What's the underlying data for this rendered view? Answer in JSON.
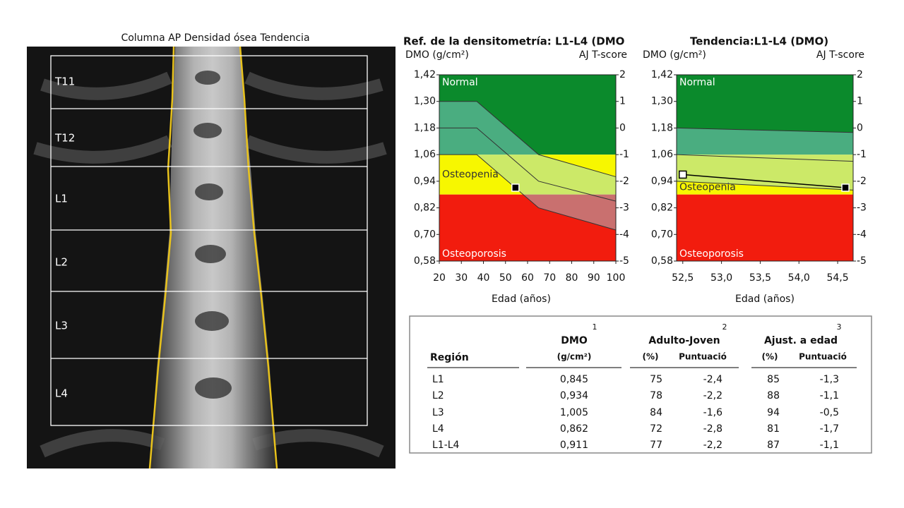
{
  "image": {
    "title": "Columna AP Densidad ósea Tendencia",
    "vertebrae": [
      "T11",
      "T12",
      "L1",
      "L2",
      "L3",
      "L4"
    ]
  },
  "charts": [
    {
      "type": "line",
      "title": "Ref. de la densitometría: L1-L4 (DMO",
      "y_label": "DMO (g/cm²)",
      "y2_label": "AJ T-score",
      "x_label": "Edad (años)",
      "xlim": [
        20,
        100
      ],
      "xticks": [
        20,
        30,
        40,
        50,
        60,
        70,
        80,
        90,
        100
      ],
      "ylim": [
        0.58,
        1.42
      ],
      "yticks": [
        {
          "value": 1.42,
          "label": "1,42"
        },
        {
          "value": 1.3,
          "label": "1,30"
        },
        {
          "value": 1.18,
          "label": "1,18"
        },
        {
          "value": 1.06,
          "label": "1,06"
        },
        {
          "value": 0.94,
          "label": "0,94"
        },
        {
          "value": 0.82,
          "label": "0,82"
        },
        {
          "value": 0.7,
          "label": "0,70"
        },
        {
          "value": 0.58,
          "label": "0,58"
        }
      ],
      "y2lim": [
        -5,
        2
      ],
      "y2ticks": [
        2,
        1,
        0,
        -1,
        -2,
        -3,
        -4,
        -5
      ],
      "zones": [
        {
          "label": "Normal",
          "from": 1.06,
          "to": 1.42,
          "color": "#0b8a2c"
        },
        {
          "label": "Osteopenia",
          "from": 0.88,
          "to": 1.06,
          "color": "#f7f700"
        },
        {
          "label": "Osteoporosis",
          "from": 0.58,
          "to": 0.88,
          "color": "#f21c0e"
        }
      ],
      "reference": {
        "x": [
          20,
          37,
          65,
          100
        ],
        "upper": [
          1.3,
          1.3,
          1.06,
          0.96
        ],
        "middle": [
          1.18,
          1.18,
          0.94,
          0.85
        ],
        "lower": [
          1.06,
          1.06,
          0.82,
          0.72
        ]
      },
      "series": [
        {
          "x": [
            54.5
          ],
          "values": [
            0.911
          ],
          "color": "#000000"
        }
      ]
    },
    {
      "type": "line",
      "title": "Tendencia:L1-L4 (DMO)",
      "y_label": "DMO (g/cm²)",
      "y2_label": "AJ T-score",
      "x_label": "Edad (años)",
      "xlim": [
        52.42,
        54.7
      ],
      "xticks": [
        {
          "value": 52.5,
          "label": "52,5"
        },
        {
          "value": 53.0,
          "label": "53,0"
        },
        {
          "value": 53.5,
          "label": "53,5"
        },
        {
          "value": 54.0,
          "label": "54,0"
        },
        {
          "value": 54.5,
          "label": "54,5"
        }
      ],
      "ylim": [
        0.58,
        1.42
      ],
      "yticks": [
        {
          "value": 1.42,
          "label": "1,42"
        },
        {
          "value": 1.3,
          "label": "1,30"
        },
        {
          "value": 1.18,
          "label": "1,18"
        },
        {
          "value": 1.06,
          "label": "1,06"
        },
        {
          "value": 0.94,
          "label": "0,94"
        },
        {
          "value": 0.82,
          "label": "0,82"
        },
        {
          "value": 0.7,
          "label": "0,70"
        },
        {
          "value": 0.58,
          "label": "0,58"
        }
      ],
      "y2lim": [
        -5,
        2
      ],
      "y2ticks": [
        2,
        1,
        0,
        -1,
        -2,
        -3,
        -4,
        -5
      ],
      "zones": [
        {
          "label": "Normal",
          "from": 1.06,
          "to": 1.42,
          "color": "#0b8a2c"
        },
        {
          "label": "Osteopenia",
          "from": 0.88,
          "to": 1.06,
          "color": "#f7f700"
        },
        {
          "label": "Osteoporosis",
          "from": 0.58,
          "to": 0.88,
          "color": "#f21c0e"
        }
      ],
      "reference": {
        "x": [
          52.42,
          54.7
        ],
        "upper": [
          1.18,
          1.16
        ],
        "middle": [
          1.06,
          1.03
        ],
        "lower": [
          0.94,
          0.9
        ]
      },
      "series": [
        {
          "x": [
            52.5,
            54.6
          ],
          "values": [
            0.97,
            0.911
          ],
          "color": "#000000"
        }
      ]
    }
  ],
  "table": {
    "group_headers": [
      {
        "text": "DMO",
        "note": "1"
      },
      {
        "text": "Adulto-Joven",
        "note": "2"
      },
      {
        "text": "Ajust. a edad",
        "note": "3"
      }
    ],
    "sub_headers": [
      "Región",
      "(g/cm²)",
      "(%)",
      "Puntuació",
      "(%)",
      "Puntuació"
    ],
    "rows": [
      [
        "L1",
        "0,845",
        "75",
        "-2,4",
        "85",
        "-1,3"
      ],
      [
        "L2",
        "0,934",
        "78",
        "-2,2",
        "88",
        "-1,1"
      ],
      [
        "L3",
        "1,005",
        "84",
        "-1,6",
        "94",
        "-0,5"
      ],
      [
        "L4",
        "0,862",
        "72",
        "-2,8",
        "81",
        "-1,7"
      ],
      [
        "L1-L4",
        "0,911",
        "77",
        "-2,2",
        "87",
        "-1,1"
      ]
    ]
  }
}
